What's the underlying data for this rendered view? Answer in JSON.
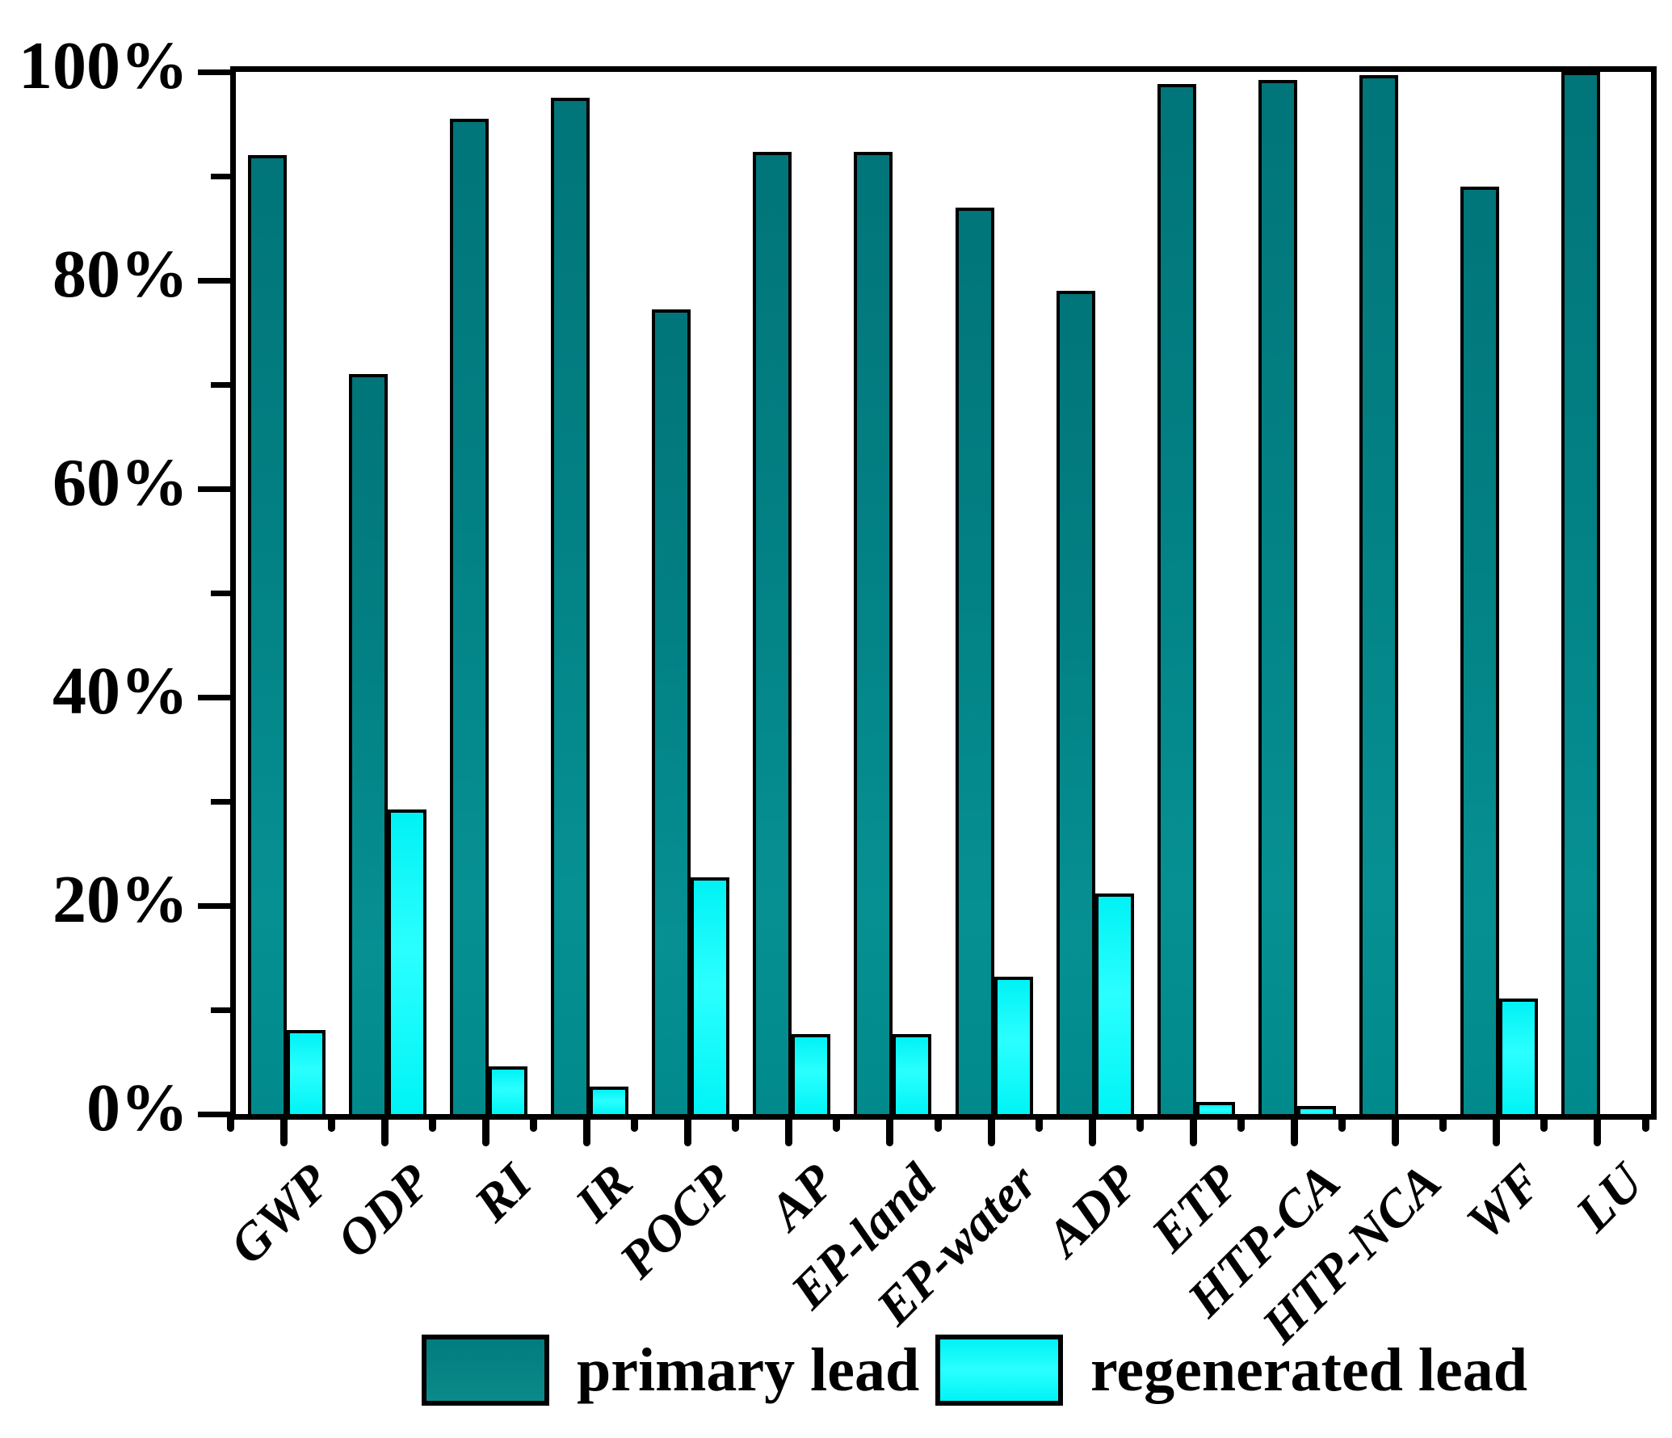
{
  "chart_data": {
    "type": "bar",
    "title": "",
    "xlabel": "",
    "ylabel": "",
    "categories": [
      "GWP",
      "ODP",
      "RI",
      "IR",
      "POCP",
      "AP",
      "EP-land",
      "EP-water",
      "ADP",
      "ETP",
      "HTP-CA",
      "HTP-NCA",
      "WF",
      "LU"
    ],
    "series": [
      {
        "name": "primary lead",
        "color": "#028083",
        "values": [
          92.0,
          71.0,
          95.5,
          97.5,
          77.2,
          92.3,
          92.3,
          87.0,
          79.0,
          98.8,
          99.2,
          99.7,
          89.0,
          100.0
        ]
      },
      {
        "name": "regenerated lead",
        "color": "#00ffff",
        "values": [
          8.1,
          29.2,
          4.6,
          2.6,
          22.7,
          7.7,
          7.7,
          13.2,
          21.2,
          1.2,
          0.8,
          0.0,
          11.1,
          0.0
        ]
      }
    ],
    "y_axis": {
      "unit": "%",
      "major_ticks": [
        0,
        20,
        40,
        60,
        80,
        100
      ],
      "minor_ticks": [
        10,
        30,
        50,
        70,
        90
      ],
      "tick_labels": [
        "0%",
        "20%",
        "40%",
        "60%",
        "80%",
        "100%"
      ],
      "ylim": [
        0,
        100
      ]
    },
    "legend_position": "bottom",
    "grid": false,
    "frame": "box",
    "outline_color": "#000000"
  }
}
